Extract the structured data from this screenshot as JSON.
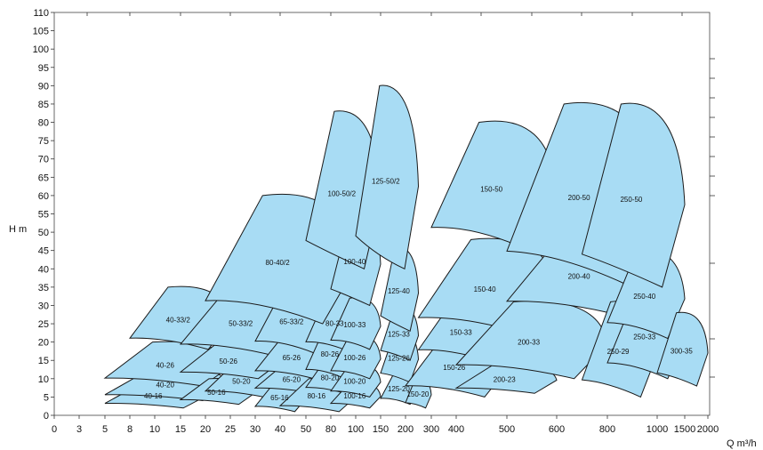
{
  "chart_data": {
    "type": "area",
    "title": "",
    "ylabel": "H  m",
    "xlabel": "Q m³/h",
    "ylim": [
      0,
      110
    ],
    "y_ticks": [
      "0",
      "5",
      "10",
      "15",
      "20",
      "25",
      "30",
      "35",
      "40",
      "45",
      "50",
      "55",
      "60",
      "65",
      "70",
      "75",
      "80",
      "85",
      "90",
      "95",
      "100",
      "105",
      "110"
    ],
    "x_ticks": [
      "0",
      "3",
      "5",
      "8",
      "10",
      "15",
      "20",
      "25",
      "30",
      "40",
      "50",
      "80",
      "100",
      "150",
      "200",
      "300",
      "400",
      "500",
      "600",
      "800",
      "1000",
      "1500",
      "2000"
    ],
    "fill_color": "#a8dcf4",
    "regions": [
      {
        "name": "40-16",
        "q_min": 5,
        "q_max": 20,
        "h_min": 2,
        "h_max": 9
      },
      {
        "name": "40-20",
        "q_min": 5,
        "q_max": 25,
        "h_min": 4,
        "h_max": 13
      },
      {
        "name": "40-26",
        "q_min": 5,
        "q_max": 25,
        "h_min": 8,
        "h_max": 20
      },
      {
        "name": "40-33/2",
        "q_min": 8,
        "q_max": 25,
        "h_min": 18,
        "h_max": 35
      },
      {
        "name": "50-16",
        "q_min": 15,
        "q_max": 30,
        "h_min": 3,
        "h_max": 10
      },
      {
        "name": "50-20",
        "q_min": 20,
        "q_max": 40,
        "h_min": 5,
        "h_max": 14
      },
      {
        "name": "50-26",
        "q_min": 15,
        "q_max": 40,
        "h_min": 10,
        "h_max": 20
      },
      {
        "name": "50-33/2",
        "q_min": 15,
        "q_max": 50,
        "h_min": 16,
        "h_max": 35
      },
      {
        "name": "65-16",
        "q_min": 30,
        "q_max": 50,
        "h_min": 1,
        "h_max": 9
      },
      {
        "name": "65-20",
        "q_min": 30,
        "q_max": 80,
        "h_min": 6,
        "h_max": 14
      },
      {
        "name": "65-26",
        "q_min": 30,
        "q_max": 80,
        "h_min": 10,
        "h_max": 22
      },
      {
        "name": "65-33/2",
        "q_min": 30,
        "q_max": 80,
        "h_min": 17,
        "h_max": 35
      },
      {
        "name": "80-16",
        "q_min": 40,
        "q_max": 100,
        "h_min": 1,
        "h_max": 10
      },
      {
        "name": "80-20",
        "q_min": 50,
        "q_max": 100,
        "h_min": 6,
        "h_max": 15
      },
      {
        "name": "80-26",
        "q_min": 50,
        "q_max": 100,
        "h_min": 10,
        "h_max": 24
      },
      {
        "name": "80-33",
        "q_min": 50,
        "q_max": 120,
        "h_min": 17,
        "h_max": 34
      },
      {
        "name": "80-40/2",
        "q_min": 20,
        "q_max": 100,
        "h_min": 25,
        "h_max": 60
      },
      {
        "name": "100-16",
        "q_min": 80,
        "q_max": 150,
        "h_min": 2,
        "h_max": 9
      },
      {
        "name": "100-20",
        "q_min": 80,
        "q_max": 150,
        "h_min": 5,
        "h_max": 14
      },
      {
        "name": "100-26",
        "q_min": 80,
        "q_max": 150,
        "h_min": 10,
        "h_max": 22
      },
      {
        "name": "100-33",
        "q_min": 80,
        "q_max": 150,
        "h_min": 18,
        "h_max": 32
      },
      {
        "name": "100-40",
        "q_min": 80,
        "q_max": 150,
        "h_min": 30,
        "h_max": 55
      },
      {
        "name": "100-50/2",
        "q_min": 50,
        "q_max": 150,
        "h_min": 40,
        "h_max": 83
      },
      {
        "name": "125-20",
        "q_min": 150,
        "q_max": 250,
        "h_min": 3,
        "h_max": 12
      },
      {
        "name": "125-26",
        "q_min": 150,
        "q_max": 250,
        "h_min": 9,
        "h_max": 23
      },
      {
        "name": "125-33",
        "q_min": 150,
        "q_max": 250,
        "h_min": 15,
        "h_max": 30
      },
      {
        "name": "125-40",
        "q_min": 150,
        "q_max": 250,
        "h_min": 23,
        "h_max": 46
      },
      {
        "name": "125-50/2",
        "q_min": 100,
        "q_max": 250,
        "h_min": 40,
        "h_max": 90
      },
      {
        "name": "150-20",
        "q_min": 200,
        "q_max": 300,
        "h_min": 2,
        "h_max": 10
      },
      {
        "name": "150-26",
        "q_min": 200,
        "q_max": 500,
        "h_min": 5,
        "h_max": 22
      },
      {
        "name": "150-33",
        "q_min": 250,
        "q_max": 500,
        "h_min": 15,
        "h_max": 31
      },
      {
        "name": "150-40",
        "q_min": 250,
        "q_max": 600,
        "h_min": 22,
        "h_max": 48
      },
      {
        "name": "150-50",
        "q_min": 300,
        "q_max": 600,
        "h_min": 45,
        "h_max": 80
      },
      {
        "name": "200-23",
        "q_min": 400,
        "q_max": 600,
        "h_min": 6,
        "h_max": 14
      },
      {
        "name": "200-33",
        "q_min": 400,
        "q_max": 800,
        "h_min": 10,
        "h_max": 31
      },
      {
        "name": "200-40",
        "q_min": 500,
        "q_max": 1000,
        "h_min": 27,
        "h_max": 50
      },
      {
        "name": "200-50",
        "q_min": 500,
        "q_max": 1000,
        "h_min": 36,
        "h_max": 85
      },
      {
        "name": "250-29",
        "q_min": 700,
        "q_max": 1000,
        "h_min": 5,
        "h_max": 31
      },
      {
        "name": "250-33",
        "q_min": 800,
        "q_max": 1500,
        "h_min": 10,
        "h_max": 34
      },
      {
        "name": "250-40",
        "q_min": 800,
        "q_max": 1500,
        "h_min": 21,
        "h_max": 45
      },
      {
        "name": "250-50",
        "q_min": 700,
        "q_max": 1500,
        "h_min": 35,
        "h_max": 85
      },
      {
        "name": "300-35",
        "q_min": 1000,
        "q_max": 2000,
        "h_min": 8,
        "h_max": 28
      }
    ]
  }
}
